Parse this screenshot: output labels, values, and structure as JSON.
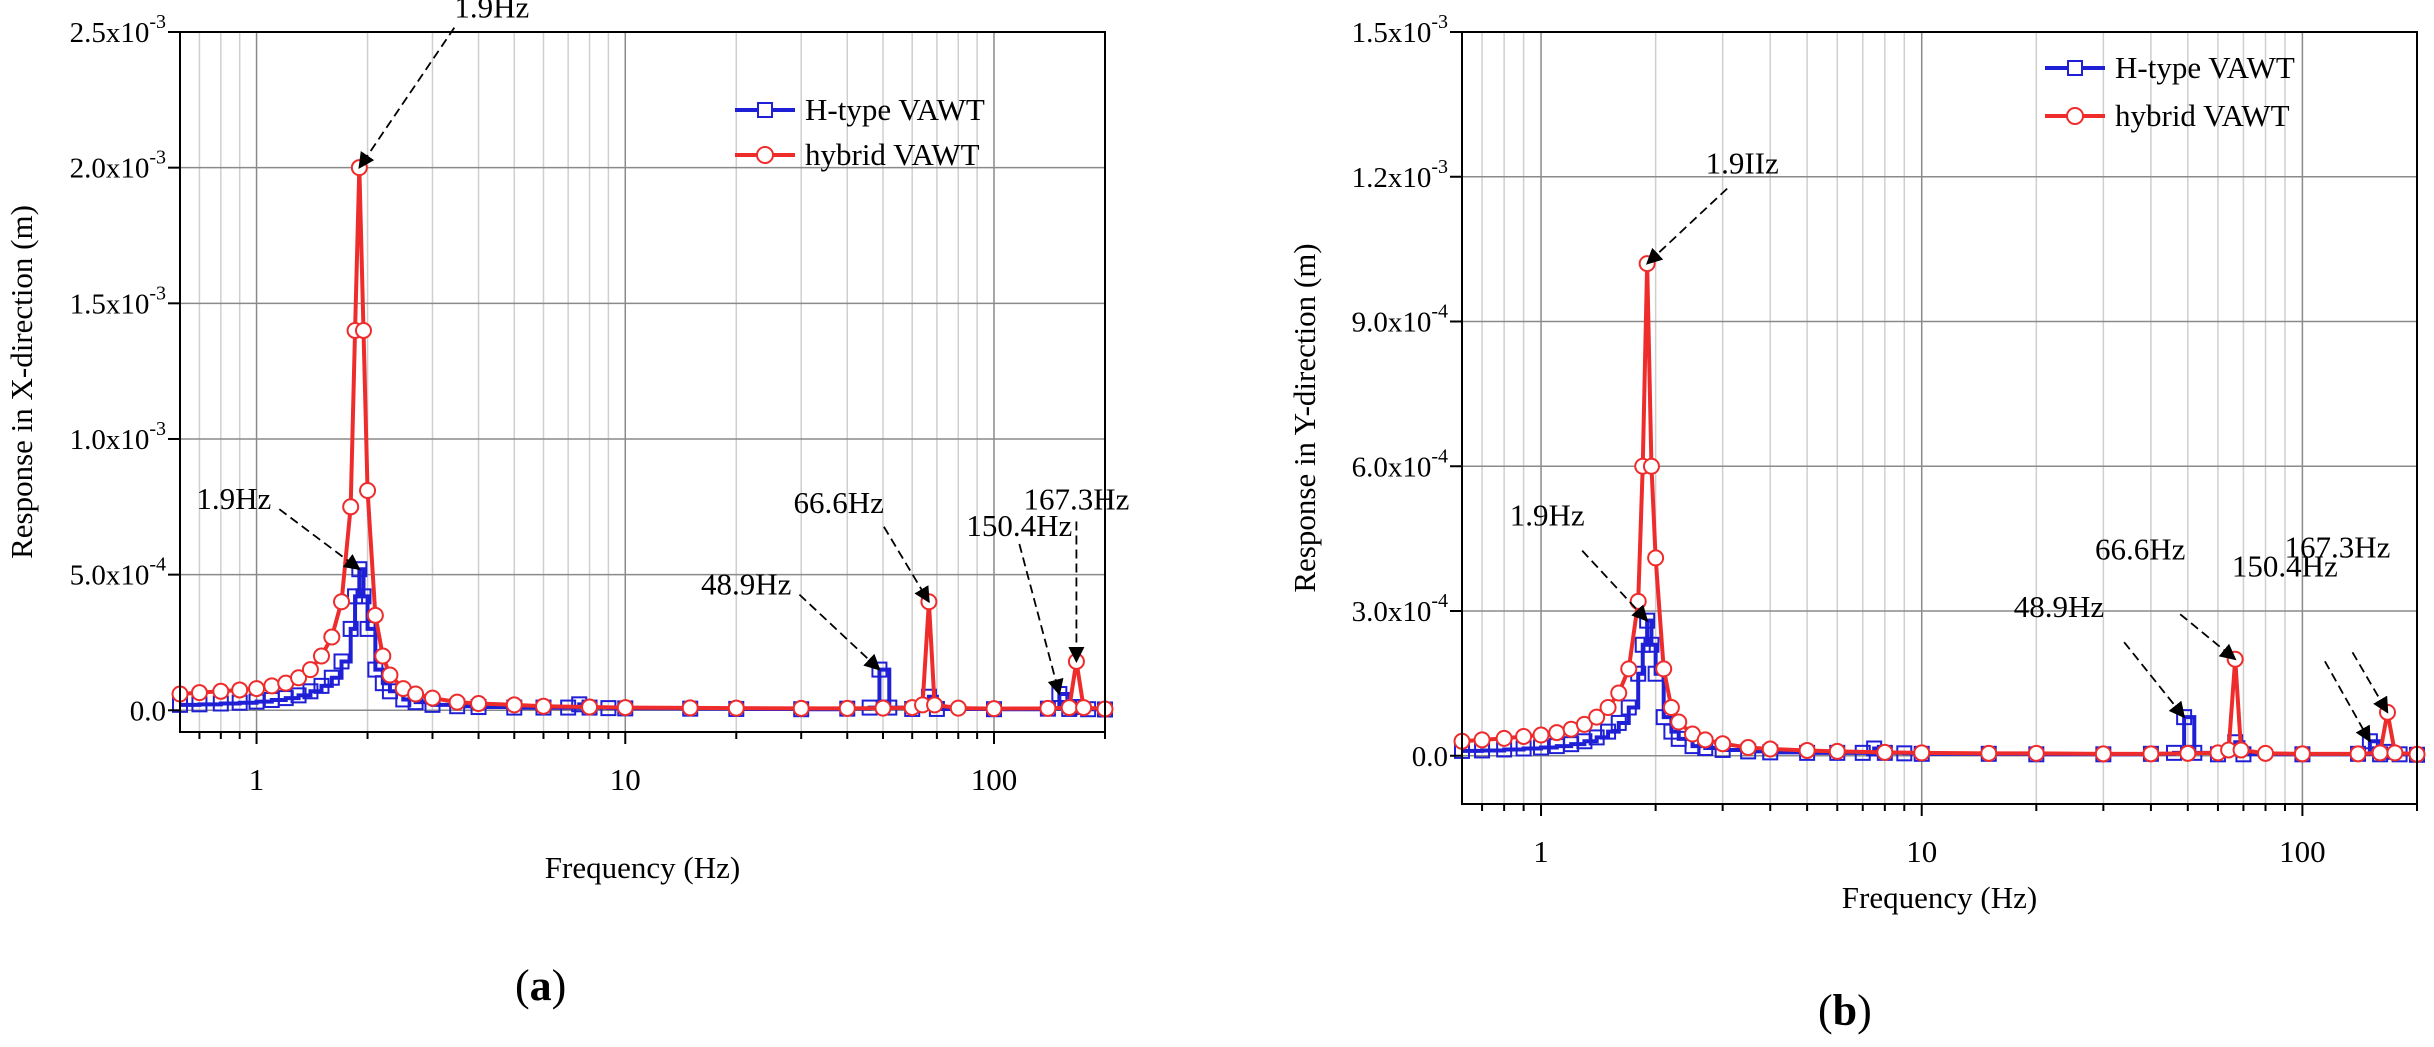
{
  "colors": {
    "h_type": "#1f1fd6",
    "hybrid": "#ee2c2c",
    "grid": "#cfcfcf",
    "major_grid": "#8a8a8a"
  },
  "captions": {
    "a": {
      "open": "(",
      "letter": "a",
      "close": ")"
    },
    "b": {
      "open": "(",
      "letter": "b",
      "close": ")"
    }
  },
  "chart_data": [
    {
      "type": "line",
      "panel": "a",
      "title": "",
      "xlabel": "Frequency (Hz)",
      "ylabel": "Response in X-direction (m)",
      "x_scale": "log",
      "xlim": [
        0.62,
        200
      ],
      "ylim": [
        -8e-05,
        0.0025
      ],
      "x_ticks": [
        1,
        10,
        100
      ],
      "x_tick_labels": [
        "1",
        "10",
        "100"
      ],
      "y_ticks": [
        0,
        0.0005,
        0.001,
        0.0015,
        0.002,
        0.0025
      ],
      "y_tick_labels": [
        {
          "mant": "0.0",
          "exp": ""
        },
        {
          "mant": "5.0x10",
          "exp": "-4"
        },
        {
          "mant": "1.0x10",
          "exp": "-3"
        },
        {
          "mant": "1.5x10",
          "exp": "-3"
        },
        {
          "mant": "2.0x10",
          "exp": "-3"
        },
        {
          "mant": "2.5x10",
          "exp": "-3"
        }
      ],
      "grid": "on",
      "legend": "top-right",
      "series": [
        {
          "name": "H-type VAWT",
          "color": "#1f1fd6",
          "marker": "square",
          "x": [
            0.62,
            0.7,
            0.8,
            0.9,
            1.0,
            1.1,
            1.2,
            1.3,
            1.4,
            1.5,
            1.6,
            1.7,
            1.8,
            1.85,
            1.9,
            1.95,
            2.0,
            2.1,
            2.2,
            2.3,
            2.5,
            2.7,
            3.0,
            3.5,
            4.0,
            5.0,
            6.0,
            7.0,
            7.5,
            8.0,
            9.0,
            10,
            15,
            20,
            30,
            40,
            46,
            48.9,
            52,
            60,
            66.6,
            70,
            100,
            140,
            150.4,
            160,
            167.3,
            180,
            200
          ],
          "y": [
            2e-05,
            2.2e-05,
            2.5e-05,
            2.8e-05,
            3.2e-05,
            3.8e-05,
            4.5e-05,
            5.5e-05,
            7e-05,
            9e-05,
            0.00012,
            0.00018,
            0.0003,
            0.00042,
            0.00052,
            0.00042,
            0.0003,
            0.00015,
            0.0001,
            7e-05,
            4e-05,
            3e-05,
            2e-05,
            1.5e-05,
            1.2e-05,
            1e-05,
            1e-05,
            1e-05,
            2.2e-05,
            1e-05,
            8e-06,
            7e-06,
            6e-06,
            5e-06,
            4e-06,
            6e-06,
            1e-05,
            0.00015,
            1e-05,
            5e-06,
            5e-05,
            5e-06,
            4e-06,
            6e-06,
            6e-05,
            5e-06,
            1.2e-05,
            4e-06,
            3e-06
          ]
        },
        {
          "name": "hybrid VAWT",
          "color": "#ee2c2c",
          "marker": "circle",
          "x": [
            0.62,
            0.7,
            0.8,
            0.9,
            1.0,
            1.1,
            1.2,
            1.3,
            1.4,
            1.5,
            1.6,
            1.7,
            1.8,
            1.85,
            1.9,
            1.95,
            2.0,
            2.1,
            2.2,
            2.3,
            2.5,
            2.7,
            3.0,
            3.5,
            4.0,
            5.0,
            6.0,
            8.0,
            10,
            15,
            20,
            30,
            40,
            50,
            60,
            64,
            66.6,
            69,
            80,
            100,
            140,
            160,
            167.3,
            175,
            200
          ],
          "y": [
            6e-05,
            6.5e-05,
            7e-05,
            7.5e-05,
            8e-05,
            9e-05,
            0.0001,
            0.00012,
            0.00015,
            0.0002,
            0.00027,
            0.0004,
            0.00075,
            0.0014,
            0.002,
            0.0014,
            0.00081,
            0.00035,
            0.0002,
            0.00013,
            8e-05,
            6e-05,
            4.5e-05,
            3e-05,
            2.5e-05,
            2e-05,
            1.5e-05,
            1.2e-05,
            1e-05,
            9e-06,
            8e-06,
            7e-06,
            7e-06,
            8e-06,
            1e-05,
            2e-05,
            0.0004,
            2e-05,
            8e-06,
            6e-06,
            7e-06,
            1e-05,
            0.00018,
            1e-05,
            5e-06
          ]
        }
      ],
      "annotations": [
        {
          "text": "1.9Hz",
          "x": 1.9,
          "y": 0.002
        },
        {
          "text": "1.9Hz",
          "x": 1.9,
          "y": 0.00052
        },
        {
          "text": "48.9Hz",
          "x": 48.9,
          "y": 0.00015
        },
        {
          "text": "66.6Hz",
          "x": 66.6,
          "y": 0.0004
        },
        {
          "text": "150.4Hz",
          "x": 150.4,
          "y": 6e-05
        },
        {
          "text": "167.3Hz",
          "x": 167.3,
          "y": 0.00018
        }
      ]
    },
    {
      "type": "line",
      "panel": "b",
      "title": "",
      "xlabel": "Frequency (Hz)",
      "ylabel": "Response in Y-direction (m)",
      "x_scale": "log",
      "xlim": [
        0.62,
        200
      ],
      "ylim": [
        -0.0001,
        0.0015
      ],
      "x_ticks": [
        1,
        10,
        100
      ],
      "x_tick_labels": [
        "1",
        "10",
        "100"
      ],
      "y_ticks": [
        0,
        0.0003,
        0.0006,
        0.0009,
        0.0012,
        0.0015
      ],
      "y_tick_labels": [
        {
          "mant": "0.0",
          "exp": ""
        },
        {
          "mant": "3.0x10",
          "exp": "-4"
        },
        {
          "mant": "6.0x10",
          "exp": "-4"
        },
        {
          "mant": "9.0x10",
          "exp": "-4"
        },
        {
          "mant": "1.2x10",
          "exp": "-3"
        },
        {
          "mant": "1.5x10",
          "exp": "-3"
        }
      ],
      "grid": "on",
      "legend": "top-right",
      "series": [
        {
          "name": "H-type VAWT",
          "color": "#1f1fd6",
          "marker": "square",
          "x": [
            0.62,
            0.7,
            0.8,
            0.9,
            1.0,
            1.1,
            1.2,
            1.3,
            1.4,
            1.5,
            1.6,
            1.7,
            1.8,
            1.85,
            1.9,
            1.95,
            2.0,
            2.1,
            2.2,
            2.3,
            2.5,
            2.7,
            3.0,
            3.5,
            4.0,
            5.0,
            6.0,
            7.0,
            7.5,
            8.0,
            9.0,
            10,
            15,
            20,
            30,
            40,
            46,
            48.9,
            52,
            60,
            66.6,
            70,
            100,
            140,
            150.4,
            160,
            167.3,
            180,
            200
          ],
          "y": [
            1e-05,
            1.1e-05,
            1.3e-05,
            1.5e-05,
            1.7e-05,
            2e-05,
            2.4e-05,
            3e-05,
            3.8e-05,
            5e-05,
            6.8e-05,
            0.0001,
            0.00017,
            0.00023,
            0.00028,
            0.00023,
            0.00017,
            8e-05,
            5e-05,
            3.5e-05,
            2e-05,
            1.6e-05,
            1.2e-05,
            9e-06,
            7e-06,
            6e-06,
            6e-06,
            6e-06,
            1.5e-05,
            6e-06,
            5e-06,
            4e-06,
            4e-06,
            3e-06,
            3e-06,
            4e-06,
            6e-06,
            8e-05,
            6e-06,
            3e-06,
            2.8e-05,
            3e-06,
            3e-06,
            4e-06,
            3e-05,
            3e-06,
            8e-06,
            3e-06,
            2e-06
          ]
        },
        {
          "name": "hybrid VAWT",
          "color": "#ee2c2c",
          "marker": "circle",
          "x": [
            0.62,
            0.7,
            0.8,
            0.9,
            1.0,
            1.1,
            1.2,
            1.3,
            1.4,
            1.5,
            1.6,
            1.7,
            1.8,
            1.85,
            1.9,
            1.95,
            2.0,
            2.1,
            2.2,
            2.3,
            2.5,
            2.7,
            3.0,
            3.5,
            4.0,
            5.0,
            6.0,
            8.0,
            10,
            15,
            20,
            30,
            40,
            50,
            60,
            64,
            66.6,
            69,
            80,
            100,
            140,
            160,
            167.3,
            175,
            200
          ],
          "y": [
            3e-05,
            3.3e-05,
            3.6e-05,
            4e-05,
            4.3e-05,
            4.8e-05,
            5.5e-05,
            6.5e-05,
            8e-05,
            0.0001,
            0.00013,
            0.00018,
            0.00032,
            0.0006,
            0.00102,
            0.0006,
            0.00041,
            0.00018,
            0.0001,
            7e-05,
            4.5e-05,
            3.3e-05,
            2.5e-05,
            1.7e-05,
            1.4e-05,
            1.1e-05,
            9e-06,
            7e-06,
            6e-06,
            5e-06,
            5e-06,
            4e-06,
            4e-06,
            5e-06,
            6e-06,
            1.2e-05,
            0.0002,
            1.2e-05,
            5e-06,
            4e-06,
            4e-06,
            6e-06,
            9e-05,
            6e-06,
            3e-06
          ]
        }
      ],
      "annotations": [
        {
          "text": "1.9IIz",
          "x": 1.9,
          "y": 0.00102
        },
        {
          "text": "1.9Hz",
          "x": 1.9,
          "y": 0.00028
        },
        {
          "text": "48.9Hz",
          "x": 48.9,
          "y": 8e-05
        },
        {
          "text": "66.6Hz",
          "x": 66.6,
          "y": 0.0002
        },
        {
          "text": "150.4Hz",
          "x": 150.4,
          "y": 3e-05
        },
        {
          "text": "167.3Hz",
          "x": 167.3,
          "y": 9e-05
        }
      ]
    }
  ]
}
